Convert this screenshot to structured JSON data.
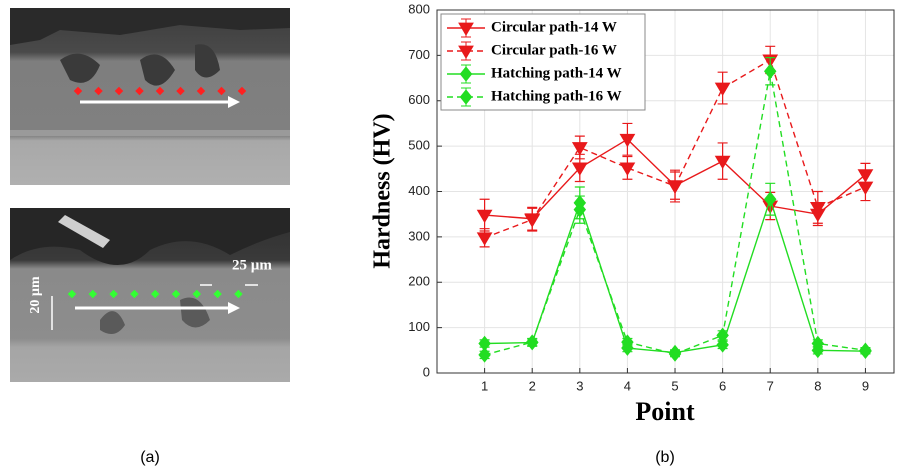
{
  "panel_labels": [
    "(a)",
    "(b)"
  ],
  "micrograph": {
    "scale_labels": [
      "25 µm",
      "20 µm"
    ]
  },
  "chart_data": {
    "type": "line",
    "x_label": "Point",
    "y_label": "Hardness (HV)",
    "x": [
      1,
      2,
      3,
      4,
      5,
      6,
      7,
      8,
      9
    ],
    "xlim": [
      0,
      9.6
    ],
    "xticks": [
      1,
      2,
      3,
      4,
      5,
      6,
      7,
      8,
      9
    ],
    "ylim": [
      0,
      800
    ],
    "yticks": [
      0,
      100,
      200,
      300,
      400,
      500,
      600,
      700,
      800
    ],
    "grid": true,
    "legend": "upper-left",
    "series": [
      {
        "name": "Circular path-14 W",
        "color": "#e8191b",
        "dashed": false,
        "marker": "triangle-down",
        "values": [
          348,
          340,
          452,
          515,
          413,
          467,
          368,
          350,
          437
        ],
        "errors": [
          35,
          25,
          30,
          35,
          30,
          40,
          30,
          25,
          25
        ]
      },
      {
        "name": "Circular path-16 W",
        "color": "#e8191b",
        "dashed": true,
        "marker": "triangle-down",
        "values": [
          298,
          338,
          497,
          452,
          412,
          628,
          690,
          365,
          410
        ],
        "errors": [
          20,
          25,
          25,
          25,
          35,
          35,
          30,
          35,
          30
        ]
      },
      {
        "name": "Hatching path-14 W",
        "color": "#22dd22",
        "dashed": false,
        "marker": "diamond",
        "values": [
          65,
          67,
          375,
          55,
          45,
          62,
          383,
          50,
          48
        ],
        "errors": [
          8,
          8,
          35,
          8,
          6,
          8,
          35,
          8,
          6
        ]
      },
      {
        "name": "Hatching path-16 W",
        "color": "#22dd22",
        "dashed": true,
        "marker": "diamond",
        "values": [
          40,
          68,
          360,
          68,
          42,
          83,
          665,
          65,
          50
        ],
        "errors": [
          8,
          8,
          30,
          8,
          6,
          10,
          30,
          8,
          6
        ]
      }
    ]
  }
}
